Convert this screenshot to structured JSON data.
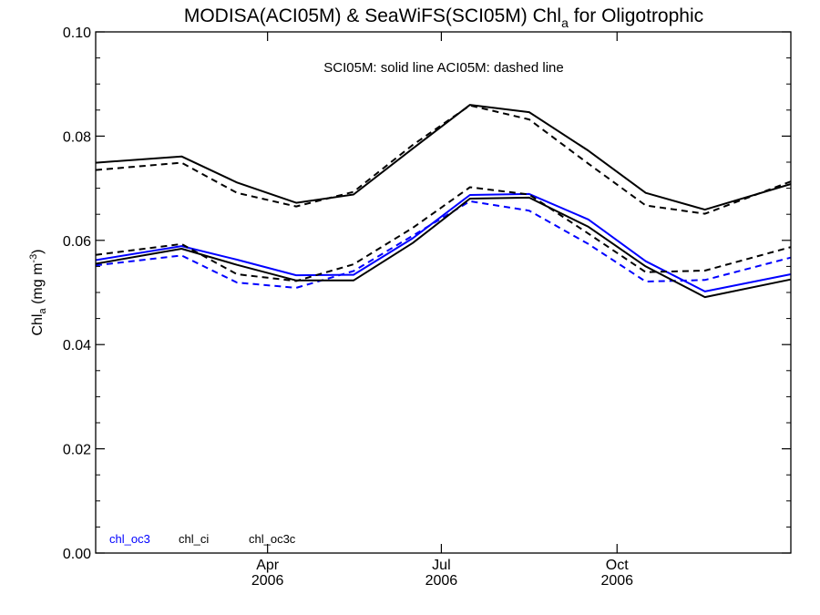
{
  "chart_data": {
    "type": "line",
    "title_parts": [
      "MODISA(ACI05M) & SeaWiFS(SCI05M)  Chl",
      "a",
      " for Oligotrophic"
    ],
    "ylabel_parts": [
      "Chl",
      "a",
      " (mg m",
      "-3",
      ")"
    ],
    "annotation": "SCI05M: solid line   ACI05M: dashed line",
    "yticks": [
      "0.00",
      "0.02",
      "0.04",
      "0.06",
      "0.08",
      "0.10"
    ],
    "ylim": [
      0,
      0.1
    ],
    "xlim": [
      "2006-01-01",
      "2006-12-31"
    ],
    "xticks": [
      {
        "date": "2006-04-01",
        "month": "Apr",
        "year": "2006"
      },
      {
        "date": "2006-07-01",
        "month": "Jul",
        "year": "2006"
      },
      {
        "date": "2006-10-01",
        "month": "Oct",
        "year": "2006"
      }
    ],
    "x": [
      "2006-01-01",
      "2006-02-15",
      "2006-03-16",
      "2006-04-16",
      "2006-05-16",
      "2006-06-16",
      "2006-07-16",
      "2006-08-16",
      "2006-09-16",
      "2006-10-16",
      "2006-11-16",
      "2006-12-31"
    ],
    "series": [
      {
        "name": "chl_oc3",
        "product": "SCI05M",
        "color": "#0000ff",
        "dashed": false,
        "values": [
          0.0562,
          0.0589,
          0.0563,
          0.0533,
          0.0534,
          0.0604,
          0.0687,
          0.0689,
          0.064,
          0.056,
          0.0502,
          0.0535
        ]
      },
      {
        "name": "chl_oc3",
        "product": "ACI05M",
        "color": "#0000ff",
        "dashed": true,
        "values": [
          0.0552,
          0.0571,
          0.0519,
          0.0509,
          0.0541,
          0.0609,
          0.0675,
          0.0657,
          0.0593,
          0.0521,
          0.0524,
          0.0567
        ]
      },
      {
        "name": "chl_ci",
        "product": "SCI05M",
        "color": "#000000",
        "dashed": false,
        "values": [
          0.0555,
          0.0584,
          0.0553,
          0.0523,
          0.0523,
          0.0595,
          0.068,
          0.0682,
          0.0626,
          0.055,
          0.0491,
          0.0525
        ]
      },
      {
        "name": "chl_ci",
        "product": "ACI05M",
        "color": "#000000",
        "dashed": true,
        "values": [
          0.0572,
          0.0593,
          0.0535,
          0.0522,
          0.0554,
          0.0624,
          0.0702,
          0.0688,
          0.0613,
          0.0539,
          0.0542,
          0.0587
        ]
      },
      {
        "name": "chl_oc3c",
        "product": "SCI05M",
        "color": "#000000",
        "dashed": false,
        "values": [
          0.0749,
          0.0761,
          0.0711,
          0.0672,
          0.0688,
          0.0776,
          0.086,
          0.0846,
          0.0772,
          0.0691,
          0.0659,
          0.0708
        ]
      },
      {
        "name": "chl_oc3c",
        "product": "ACI05M",
        "color": "#000000",
        "dashed": true,
        "values": [
          0.0735,
          0.0749,
          0.0691,
          0.0665,
          0.0693,
          0.0783,
          0.0859,
          0.0832,
          0.0747,
          0.0667,
          0.0651,
          0.0713
        ]
      }
    ],
    "legend": [
      {
        "label": "chl_oc3",
        "color": "#0000ff"
      },
      {
        "label": "chl_ci",
        "color": "#000000"
      },
      {
        "label": "chl_oc3c",
        "color": "#000000"
      }
    ],
    "legend_position": "bottom-left",
    "grid": false
  }
}
